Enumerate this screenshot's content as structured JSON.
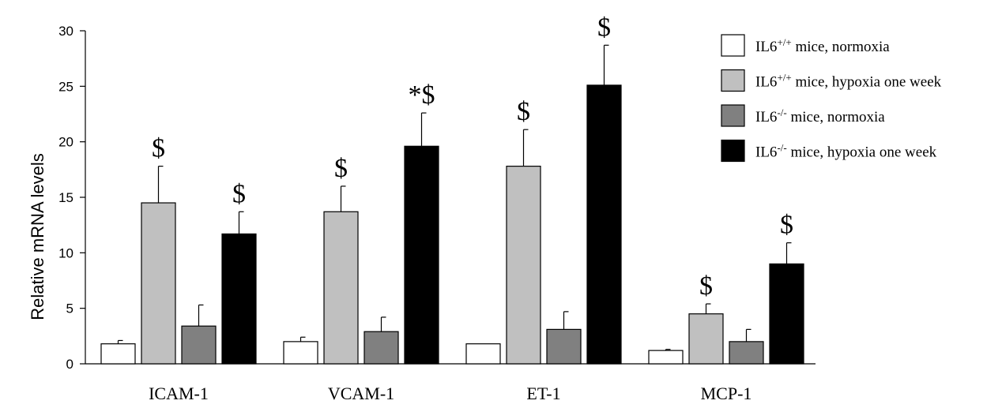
{
  "chart_data": {
    "type": "bar",
    "ylabel": "Relative mRNA levels",
    "xlabel": "",
    "ylim": [
      0,
      30
    ],
    "yticks": [
      0,
      5,
      10,
      15,
      20,
      25,
      30
    ],
    "grid": false,
    "legend_position": "top-right",
    "categories": [
      "ICAM-1",
      "VCAM-1",
      "ET-1",
      "MCP-1"
    ],
    "series": [
      {
        "name": "IL6+/+ mice, normoxia",
        "legend_base": "IL6",
        "legend_sup": "+/+",
        "legend_rest": " mice,  normoxia",
        "color": "#ffffff",
        "values": [
          1.8,
          2.0,
          1.8,
          1.2
        ],
        "errors": [
          0.3,
          0.4,
          0.0,
          0.1
        ],
        "annotations": [
          "",
          "",
          "",
          ""
        ]
      },
      {
        "name": "IL6+/+ mice, hypoxia one week",
        "legend_base": "IL6",
        "legend_sup": "+/+",
        "legend_rest": " mice,  hypoxia one week",
        "color": "#c0c0c0",
        "values": [
          14.5,
          13.7,
          17.8,
          4.5
        ],
        "errors": [
          3.3,
          2.3,
          3.3,
          0.9
        ],
        "annotations": [
          "$",
          "$",
          "$",
          "$"
        ]
      },
      {
        "name": "IL6-/- mice, normoxia",
        "legend_base": "IL6",
        "legend_sup": "-/-",
        "legend_rest": " mice,  normoxia",
        "color": "#808080",
        "values": [
          3.4,
          2.9,
          3.1,
          2.0
        ],
        "errors": [
          1.9,
          1.3,
          1.6,
          1.1
        ],
        "annotations": [
          "",
          "",
          "",
          ""
        ]
      },
      {
        "name": "IL6-/- mice, hypoxia one week",
        "legend_base": "IL6",
        "legend_sup": "-/-",
        "legend_rest": " mice,  hypoxia one week",
        "color": "#000000",
        "values": [
          11.7,
          19.6,
          25.1,
          9.0
        ],
        "errors": [
          2.0,
          3.0,
          3.6,
          1.9
        ],
        "annotations": [
          "$",
          "*$",
          "$",
          "$"
        ]
      }
    ]
  }
}
